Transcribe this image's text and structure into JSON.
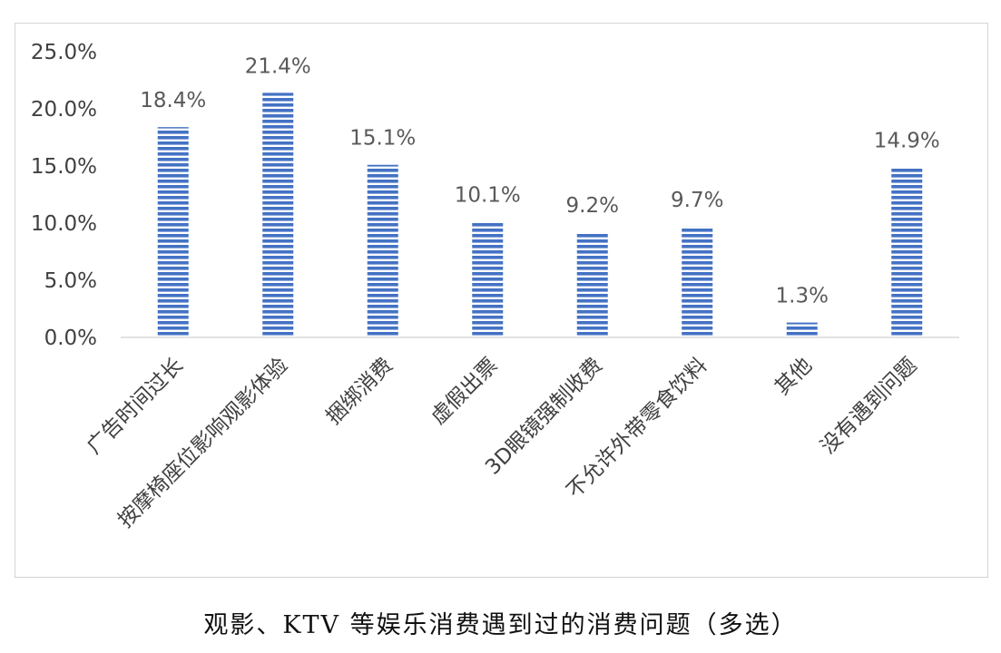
{
  "caption": "观影、KTV 等娱乐消费遇到过的消费问题（多选）",
  "colors": {
    "bar": "#4472c4",
    "stripe_bg": "#ffffff",
    "axis": "#d9d9d9",
    "frame": "#d4d4d4"
  },
  "chart_data": {
    "type": "bar",
    "title": "",
    "xlabel": "",
    "ylabel": "",
    "ylim": [
      0,
      25
    ],
    "yticks": [
      "0.0%",
      "5.0%",
      "10.0%",
      "15.0%",
      "20.0%",
      "25.0%"
    ],
    "grid": false,
    "legend": "none",
    "categories": [
      "广告时间过长",
      "按摩椅座位影响观影体验",
      "捆绑消费",
      "虚假出票",
      "3D眼镜强制收费",
      "不允许外带零食饮料",
      "其他",
      "没有遇到问题"
    ],
    "values": [
      18.4,
      21.4,
      15.1,
      10.1,
      9.2,
      9.7,
      1.3,
      14.9
    ],
    "data_labels": [
      "18.4%",
      "21.4%",
      "15.1%",
      "10.1%",
      "9.2%",
      "9.7%",
      "1.3%",
      "14.9%"
    ]
  }
}
